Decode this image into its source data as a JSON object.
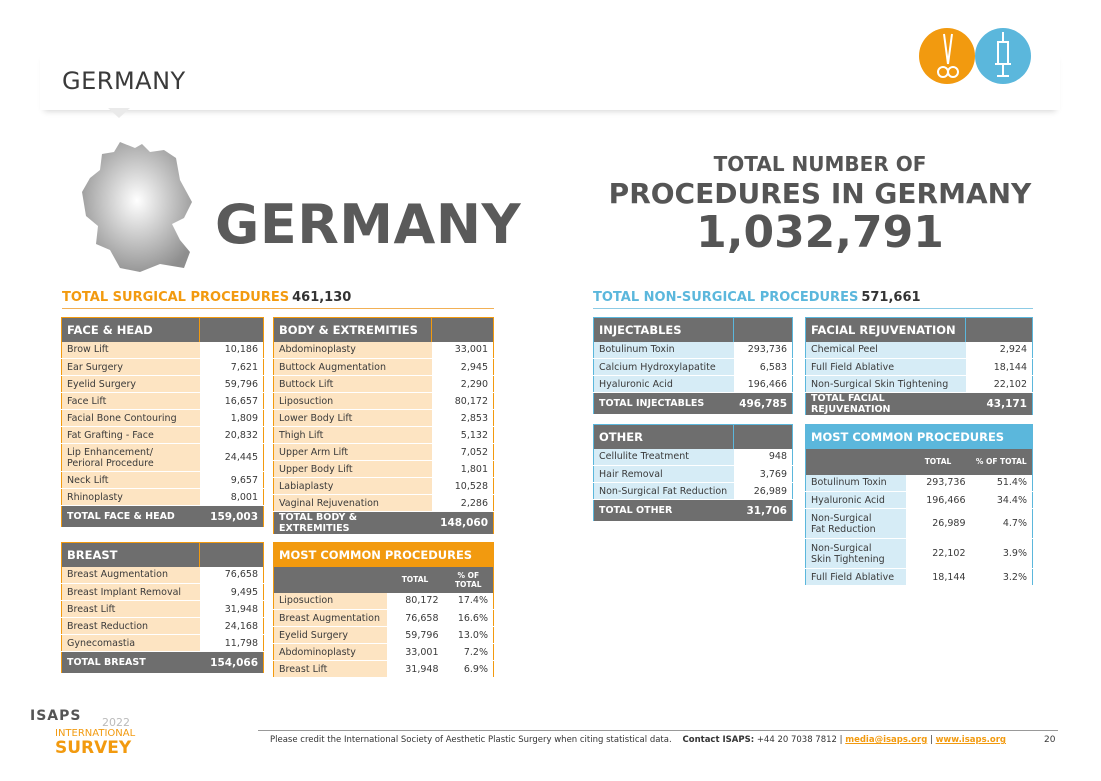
{
  "header": {
    "title": "GERMANY"
  },
  "icons": {
    "left": "scissors-icon",
    "right": "syringe-icon"
  },
  "country": {
    "name": "GERMANY"
  },
  "total": {
    "line1": "TOTAL NUMBER OF",
    "line2": "PROCEDURES IN GERMANY",
    "value": "1,032,791"
  },
  "surgical": {
    "label": "TOTAL SURGICAL PROCEDURES",
    "value": "461,130"
  },
  "nonsurgical": {
    "label": "TOTAL NON-SURGICAL PROCEDURES",
    "value": "571,661"
  },
  "face_head": {
    "title": "FACE & HEAD",
    "rows": [
      {
        "name": "Brow Lift",
        "value": "10,186"
      },
      {
        "name": "Ear Surgery",
        "value": "7,621"
      },
      {
        "name": "Eyelid Surgery",
        "value": "59,796"
      },
      {
        "name": "Face Lift",
        "value": "16,657"
      },
      {
        "name": "Facial Bone Contouring",
        "value": "1,809"
      },
      {
        "name": "Fat Grafting - Face",
        "value": "20,832"
      },
      {
        "name": "Lip Enhancement/\nPerioral Procedure",
        "value": "24,445"
      },
      {
        "name": "Neck Lift",
        "value": "9,657"
      },
      {
        "name": "Rhinoplasty",
        "value": "8,001"
      }
    ],
    "total_label": "TOTAL FACE & HEAD",
    "total_value": "159,003"
  },
  "body_ext": {
    "title": "BODY & EXTREMITIES",
    "rows": [
      {
        "name": "Abdominoplasty",
        "value": "33,001"
      },
      {
        "name": "Buttock Augmentation",
        "value": "2,945"
      },
      {
        "name": "Buttock Lift",
        "value": "2,290"
      },
      {
        "name": "Liposuction",
        "value": "80,172"
      },
      {
        "name": "Lower Body Lift",
        "value": "2,853"
      },
      {
        "name": "Thigh Lift",
        "value": "5,132"
      },
      {
        "name": "Upper Arm Lift",
        "value": "7,052"
      },
      {
        "name": "Upper Body Lift",
        "value": "1,801"
      },
      {
        "name": "Labiaplasty",
        "value": "10,528"
      },
      {
        "name": "Vaginal Rejuvenation",
        "value": "2,286"
      }
    ],
    "total_label": "TOTAL BODY & EXTREMITIES",
    "total_value": "148,060"
  },
  "breast": {
    "title": "BREAST",
    "rows": [
      {
        "name": "Breast Augmentation",
        "value": "76,658"
      },
      {
        "name": "Breast Implant Removal",
        "value": "9,495"
      },
      {
        "name": "Breast Lift",
        "value": "31,948"
      },
      {
        "name": "Breast Reduction",
        "value": "24,168"
      },
      {
        "name": "Gynecomastia",
        "value": "11,798"
      }
    ],
    "total_label": "TOTAL BREAST",
    "total_value": "154,066"
  },
  "mc_surgical": {
    "title": "MOST COMMON PROCEDURES",
    "col_total": "TOTAL",
    "col_pct": "% OF TOTAL",
    "rows": [
      {
        "name": "Liposuction",
        "total": "80,172",
        "pct": "17.4%"
      },
      {
        "name": "Breast Augmentation",
        "total": "76,658",
        "pct": "16.6%"
      },
      {
        "name": "Eyelid Surgery",
        "total": "59,796",
        "pct": "13.0%"
      },
      {
        "name": "Abdominoplasty",
        "total": "33,001",
        "pct": "7.2%"
      },
      {
        "name": "Breast Lift",
        "total": "31,948",
        "pct": "6.9%"
      }
    ]
  },
  "injectables": {
    "title": "INJECTABLES",
    "rows": [
      {
        "name": "Botulinum Toxin",
        "value": "293,736"
      },
      {
        "name": "Calcium Hydroxylapatite",
        "value": "6,583"
      },
      {
        "name": "Hyaluronic Acid",
        "value": "196,466"
      }
    ],
    "total_label": "TOTAL INJECTABLES",
    "total_value": "496,785"
  },
  "facial_rejuv": {
    "title": "FACIAL REJUVENATION",
    "rows": [
      {
        "name": "Chemical Peel",
        "value": "2,924"
      },
      {
        "name": "Full Field Ablative",
        "value": "18,144"
      },
      {
        "name": "Non-Surgical Skin Tightening",
        "value": "22,102"
      }
    ],
    "total_label": "TOTAL FACIAL REJUVENATION",
    "total_value": "43,171"
  },
  "other": {
    "title": "OTHER",
    "rows": [
      {
        "name": "Cellulite Treatment",
        "value": "948"
      },
      {
        "name": "Hair Removal",
        "value": "3,769"
      },
      {
        "name": "Non-Surgical Fat Reduction",
        "value": "26,989"
      }
    ],
    "total_label": "TOTAL OTHER",
    "total_value": "31,706"
  },
  "mc_nonsurgical": {
    "title": "MOST COMMON PROCEDURES",
    "col_total": "TOTAL",
    "col_pct": "% OF TOTAL",
    "rows": [
      {
        "name": "Botulinum Toxin",
        "total": "293,736",
        "pct": "51.4%"
      },
      {
        "name": "Hyaluronic Acid",
        "total": "196,466",
        "pct": "34.4%"
      },
      {
        "name": "Non-Surgical\nFat Reduction",
        "total": "26,989",
        "pct": "4.7%"
      },
      {
        "name": "Non-Surgical\nSkin Tightening",
        "total": "22,102",
        "pct": "3.9%"
      },
      {
        "name": "Full Field Ablative",
        "total": "18,144",
        "pct": "3.2%"
      }
    ]
  },
  "footer": {
    "credit": "Please credit the International Society of Aesthetic Plastic Surgery when citing statistical data.",
    "contact_label": "Contact ISAPS:",
    "contact_phone": "+44 20 7038 7812 |",
    "email": "media@isaps.org",
    "sep": "|",
    "website": "www.isaps.org",
    "page": "20"
  },
  "logo": {
    "org": "ISAPS",
    "year": "2022",
    "line1": "INTERNATIONAL",
    "line2": "SURVEY"
  }
}
